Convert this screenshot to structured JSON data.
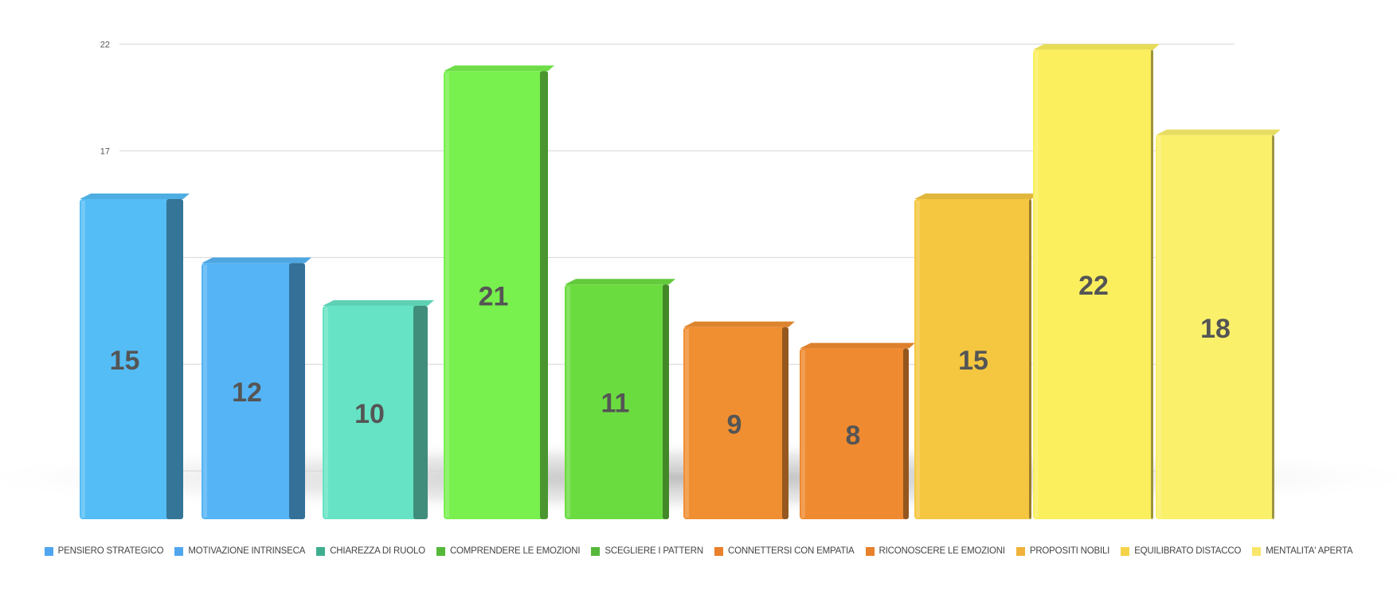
{
  "chart_data": {
    "type": "bar",
    "title": "",
    "xlabel": "",
    "ylabel": "",
    "ylim": [
      0,
      22
    ],
    "yticks": [
      17,
      22
    ],
    "grid": true,
    "legend_position": "bottom",
    "categories": [
      "PENSIERO STRATEGICO",
      "MOTIVAZIONE INTRINSECA",
      "CHIAREZZA DI RUOLO",
      "COMPRENDERE LE EMOZIONI",
      "SCEGLIERE I PATTERN",
      "CONNETTERSI CON EMPATIA",
      "RICONOSCERE LE EMOZIONI",
      "PROPOSITI NOBILI",
      "EQUILIBRATO DISTACCO",
      "MENTALITA' APERTA"
    ],
    "values": [
      15,
      12,
      10,
      21,
      11,
      9,
      8,
      15,
      22,
      18
    ],
    "colors": [
      "#55bdf5",
      "#55b4f5",
      "#66e3c4",
      "#78f04e",
      "#6bdc40",
      "#f08f32",
      "#f08a30",
      "#f5c740",
      "#fbef5e",
      "#fbf06a"
    ],
    "legend_colors": [
      "#4fa6ee",
      "#4fa6ee",
      "#3fae8e",
      "#55b83a",
      "#55b83a",
      "#e8802c",
      "#e8802c",
      "#f0b23a",
      "#f5d348",
      "#f8e56a"
    ]
  }
}
